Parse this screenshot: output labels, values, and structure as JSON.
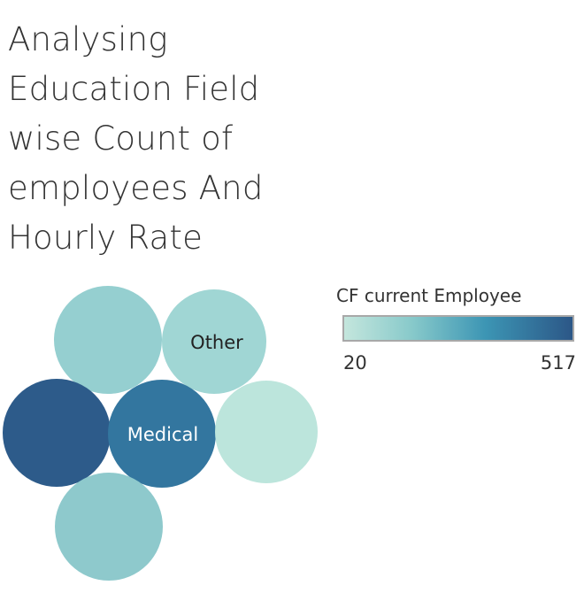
{
  "chart_title_lines": [
    "Analysing",
    "Education Field",
    "wise Count of",
    "employees And",
    "Hourly Rate"
  ],
  "chart_data": {
    "type": "packed-bubble",
    "color_measure": "CF current Employee",
    "color_range": [
      20,
      517
    ],
    "colors": {
      "low": "#c4e6dd",
      "mid": "#3c95b4",
      "high": "#2c5787"
    },
    "bubbles": [
      {
        "label": "",
        "value": 160,
        "color": "#95cfd0"
      },
      {
        "label": "Other",
        "value": 80,
        "color": "#a0d6d4"
      },
      {
        "label": "",
        "value": 517,
        "color": "#2d5b8a"
      },
      {
        "label": "Medical",
        "value": 400,
        "color": "#33769f"
      },
      {
        "label": "",
        "value": 20,
        "color": "#bce5dc"
      },
      {
        "label": "",
        "value": 190,
        "color": "#8ec9cc"
      }
    ]
  },
  "legend": {
    "title": "CF current Employee",
    "min_label": "20",
    "max_label": "517"
  }
}
